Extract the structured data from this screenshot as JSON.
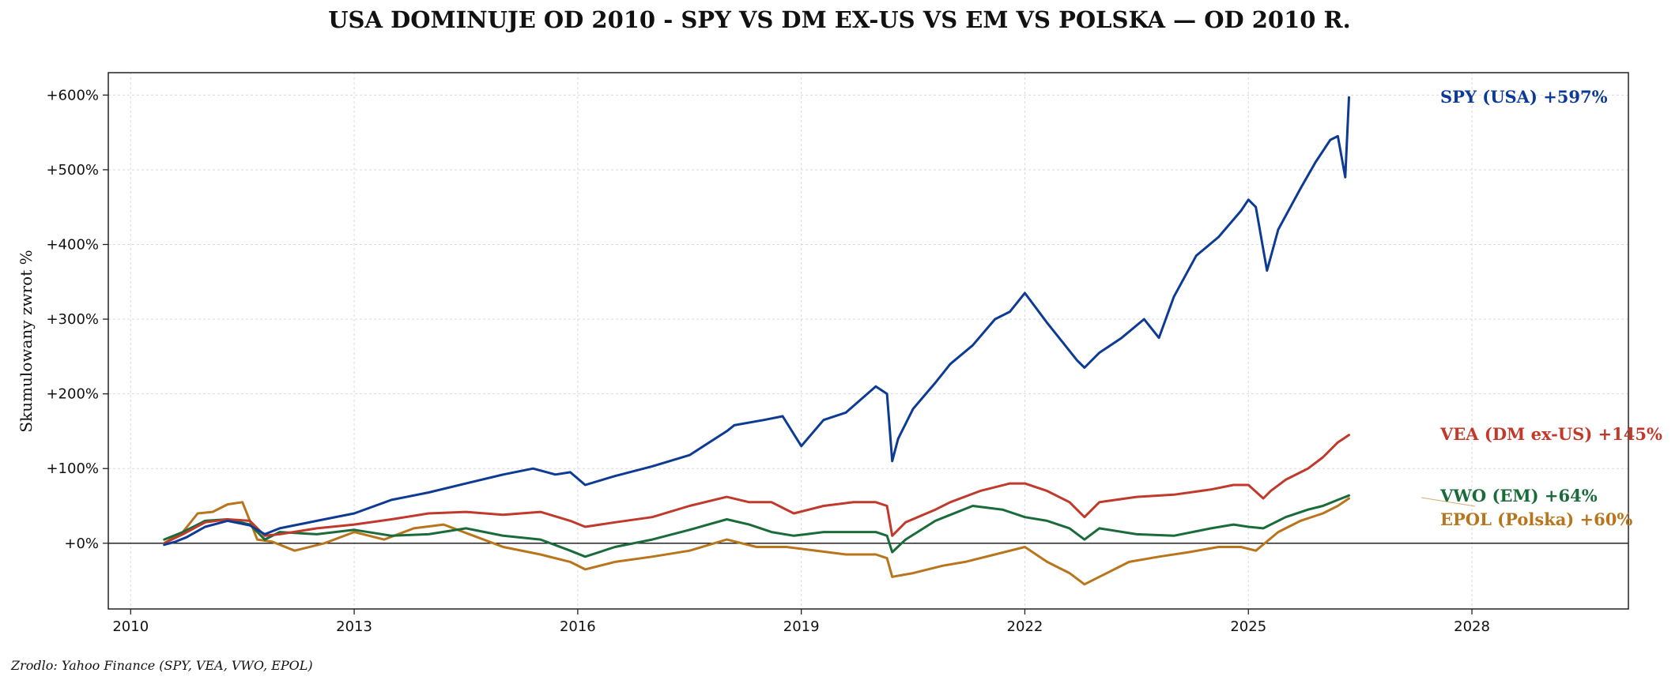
{
  "chart_data": {
    "type": "line",
    "title": "USA DOMINUJE OD 2010 - SPY VS DM EX-US VS EM VS POLSKA — OD 2010 R.",
    "ylabel": "Skumulowany zwrot %",
    "xlabel": "",
    "source": "Zrodlo: Yahoo Finance (SPY, VEA, VWO, EPOL)",
    "xlim": [
      2009.7,
      2030.1
    ],
    "ylim": [
      -88,
      630
    ],
    "x_ticks": [
      2010,
      2013,
      2016,
      2019,
      2022,
      2025,
      2028
    ],
    "x_tick_labels": [
      "2010",
      "2013",
      "2016",
      "2019",
      "2022",
      "2025",
      "2028"
    ],
    "y_ticks": [
      0,
      100,
      200,
      300,
      400,
      500,
      600
    ],
    "y_tick_labels": [
      "+0%",
      "+100%",
      "+200%",
      "+300%",
      "+400%",
      "+500%",
      "+600%"
    ],
    "grid": true,
    "series": [
      {
        "name": "SPY (USA)",
        "end_label": "SPY (USA)  +597%",
        "color": "#0d3b94",
        "x": [
          2010.45,
          2010.6,
          2010.75,
          2011.0,
          2011.3,
          2011.6,
          2011.8,
          2012.0,
          2012.5,
          2013.0,
          2013.5,
          2014.0,
          2014.5,
          2015.0,
          2015.4,
          2015.7,
          2015.9,
          2016.1,
          2016.5,
          2017.0,
          2017.5,
          2018.0,
          2018.1,
          2018.5,
          2018.75,
          2019.0,
          2019.3,
          2019.6,
          2020.0,
          2020.15,
          2020.22,
          2020.3,
          2020.5,
          2020.8,
          2021.0,
          2021.3,
          2021.6,
          2021.8,
          2022.0,
          2022.3,
          2022.5,
          2022.7,
          2022.8,
          2023.0,
          2023.3,
          2023.6,
          2023.8,
          2024.0,
          2024.3,
          2024.6,
          2024.9,
          2025.0,
          2025.1,
          2025.25,
          2025.4,
          2025.7,
          2025.9,
          2026.1,
          2026.2,
          2026.3,
          2026.35
        ],
        "y": [
          -2,
          2,
          8,
          22,
          30,
          24,
          12,
          20,
          30,
          40,
          58,
          68,
          80,
          92,
          100,
          92,
          95,
          78,
          90,
          103,
          118,
          150,
          158,
          165,
          170,
          130,
          165,
          175,
          210,
          200,
          110,
          140,
          180,
          215,
          240,
          265,
          300,
          310,
          335,
          295,
          270,
          245,
          235,
          255,
          275,
          300,
          275,
          330,
          385,
          410,
          445,
          460,
          450,
          365,
          420,
          475,
          510,
          540,
          545,
          490,
          597
        ]
      },
      {
        "name": "VEA (DM ex-US)",
        "end_label": "VEA (DM ex-US)  +145%",
        "color": "#c0392b",
        "x": [
          2010.45,
          2010.7,
          2011.0,
          2011.3,
          2011.6,
          2011.8,
          2012.0,
          2012.5,
          2013.0,
          2013.5,
          2014.0,
          2014.5,
          2015.0,
          2015.5,
          2015.9,
          2016.1,
          2016.5,
          2017.0,
          2017.5,
          2018.0,
          2018.3,
          2018.6,
          2018.9,
          2019.3,
          2019.7,
          2020.0,
          2020.15,
          2020.22,
          2020.4,
          2020.8,
          2021.0,
          2021.4,
          2021.8,
          2022.0,
          2022.3,
          2022.6,
          2022.8,
          2023.0,
          2023.5,
          2024.0,
          2024.5,
          2024.8,
          2025.0,
          2025.2,
          2025.3,
          2025.5,
          2025.8,
          2026.0,
          2026.2,
          2026.35
        ],
        "y": [
          0,
          12,
          28,
          32,
          30,
          10,
          12,
          20,
          25,
          32,
          40,
          42,
          38,
          42,
          30,
          22,
          28,
          35,
          50,
          62,
          55,
          55,
          40,
          50,
          55,
          55,
          50,
          10,
          28,
          45,
          55,
          70,
          80,
          80,
          70,
          55,
          35,
          55,
          62,
          65,
          72,
          78,
          78,
          60,
          70,
          85,
          100,
          115,
          135,
          145
        ]
      },
      {
        "name": "VWO (EM)",
        "end_label": "VWO (EM)  +64%",
        "color": "#1a6b3a",
        "x": [
          2010.45,
          2010.7,
          2011.0,
          2011.3,
          2011.6,
          2011.8,
          2012.0,
          2012.5,
          2013.0,
          2013.5,
          2014.0,
          2014.5,
          2015.0,
          2015.5,
          2015.9,
          2016.1,
          2016.5,
          2017.0,
          2017.5,
          2018.0,
          2018.3,
          2018.6,
          2018.9,
          2019.3,
          2019.7,
          2020.0,
          2020.15,
          2020.22,
          2020.4,
          2020.8,
          2021.0,
          2021.3,
          2021.7,
          2022.0,
          2022.3,
          2022.6,
          2022.8,
          2023.0,
          2023.5,
          2024.0,
          2024.5,
          2024.8,
          2025.0,
          2025.2,
          2025.5,
          2025.8,
          2026.0,
          2026.2,
          2026.35
        ],
        "y": [
          5,
          15,
          30,
          32,
          25,
          5,
          15,
          12,
          18,
          10,
          12,
          20,
          10,
          5,
          -10,
          -18,
          -5,
          5,
          18,
          32,
          25,
          15,
          10,
          15,
          15,
          15,
          10,
          -12,
          5,
          30,
          38,
          50,
          45,
          35,
          30,
          20,
          5,
          20,
          12,
          10,
          20,
          25,
          22,
          20,
          35,
          45,
          50,
          58,
          64
        ]
      },
      {
        "name": "EPOL (Polska)",
        "end_label": "EPOL (Polska)  +60%",
        "color": "#b8751c",
        "x": [
          2010.45,
          2010.7,
          2010.9,
          2011.1,
          2011.3,
          2011.5,
          2011.7,
          2011.9,
          2012.2,
          2012.6,
          2013.0,
          2013.4,
          2013.8,
          2014.2,
          2014.6,
          2015.0,
          2015.5,
          2015.9,
          2016.1,
          2016.5,
          2017.0,
          2017.5,
          2018.0,
          2018.4,
          2018.8,
          2019.2,
          2019.6,
          2020.0,
          2020.15,
          2020.22,
          2020.5,
          2020.9,
          2021.2,
          2021.6,
          2022.0,
          2022.3,
          2022.6,
          2022.8,
          2023.0,
          2023.4,
          2023.8,
          2024.2,
          2024.6,
          2024.9,
          2025.1,
          2025.4,
          2025.7,
          2026.0,
          2026.2,
          2026.35
        ],
        "y": [
          0,
          15,
          40,
          42,
          52,
          55,
          5,
          2,
          -10,
          0,
          15,
          5,
          20,
          25,
          10,
          -5,
          -15,
          -25,
          -35,
          -25,
          -18,
          -10,
          5,
          -5,
          -5,
          -10,
          -15,
          -15,
          -20,
          -45,
          -40,
          -30,
          -25,
          -15,
          -5,
          -25,
          -40,
          -55,
          -45,
          -25,
          -18,
          -12,
          -5,
          -5,
          -10,
          15,
          30,
          40,
          50,
          60
        ]
      }
    ]
  }
}
